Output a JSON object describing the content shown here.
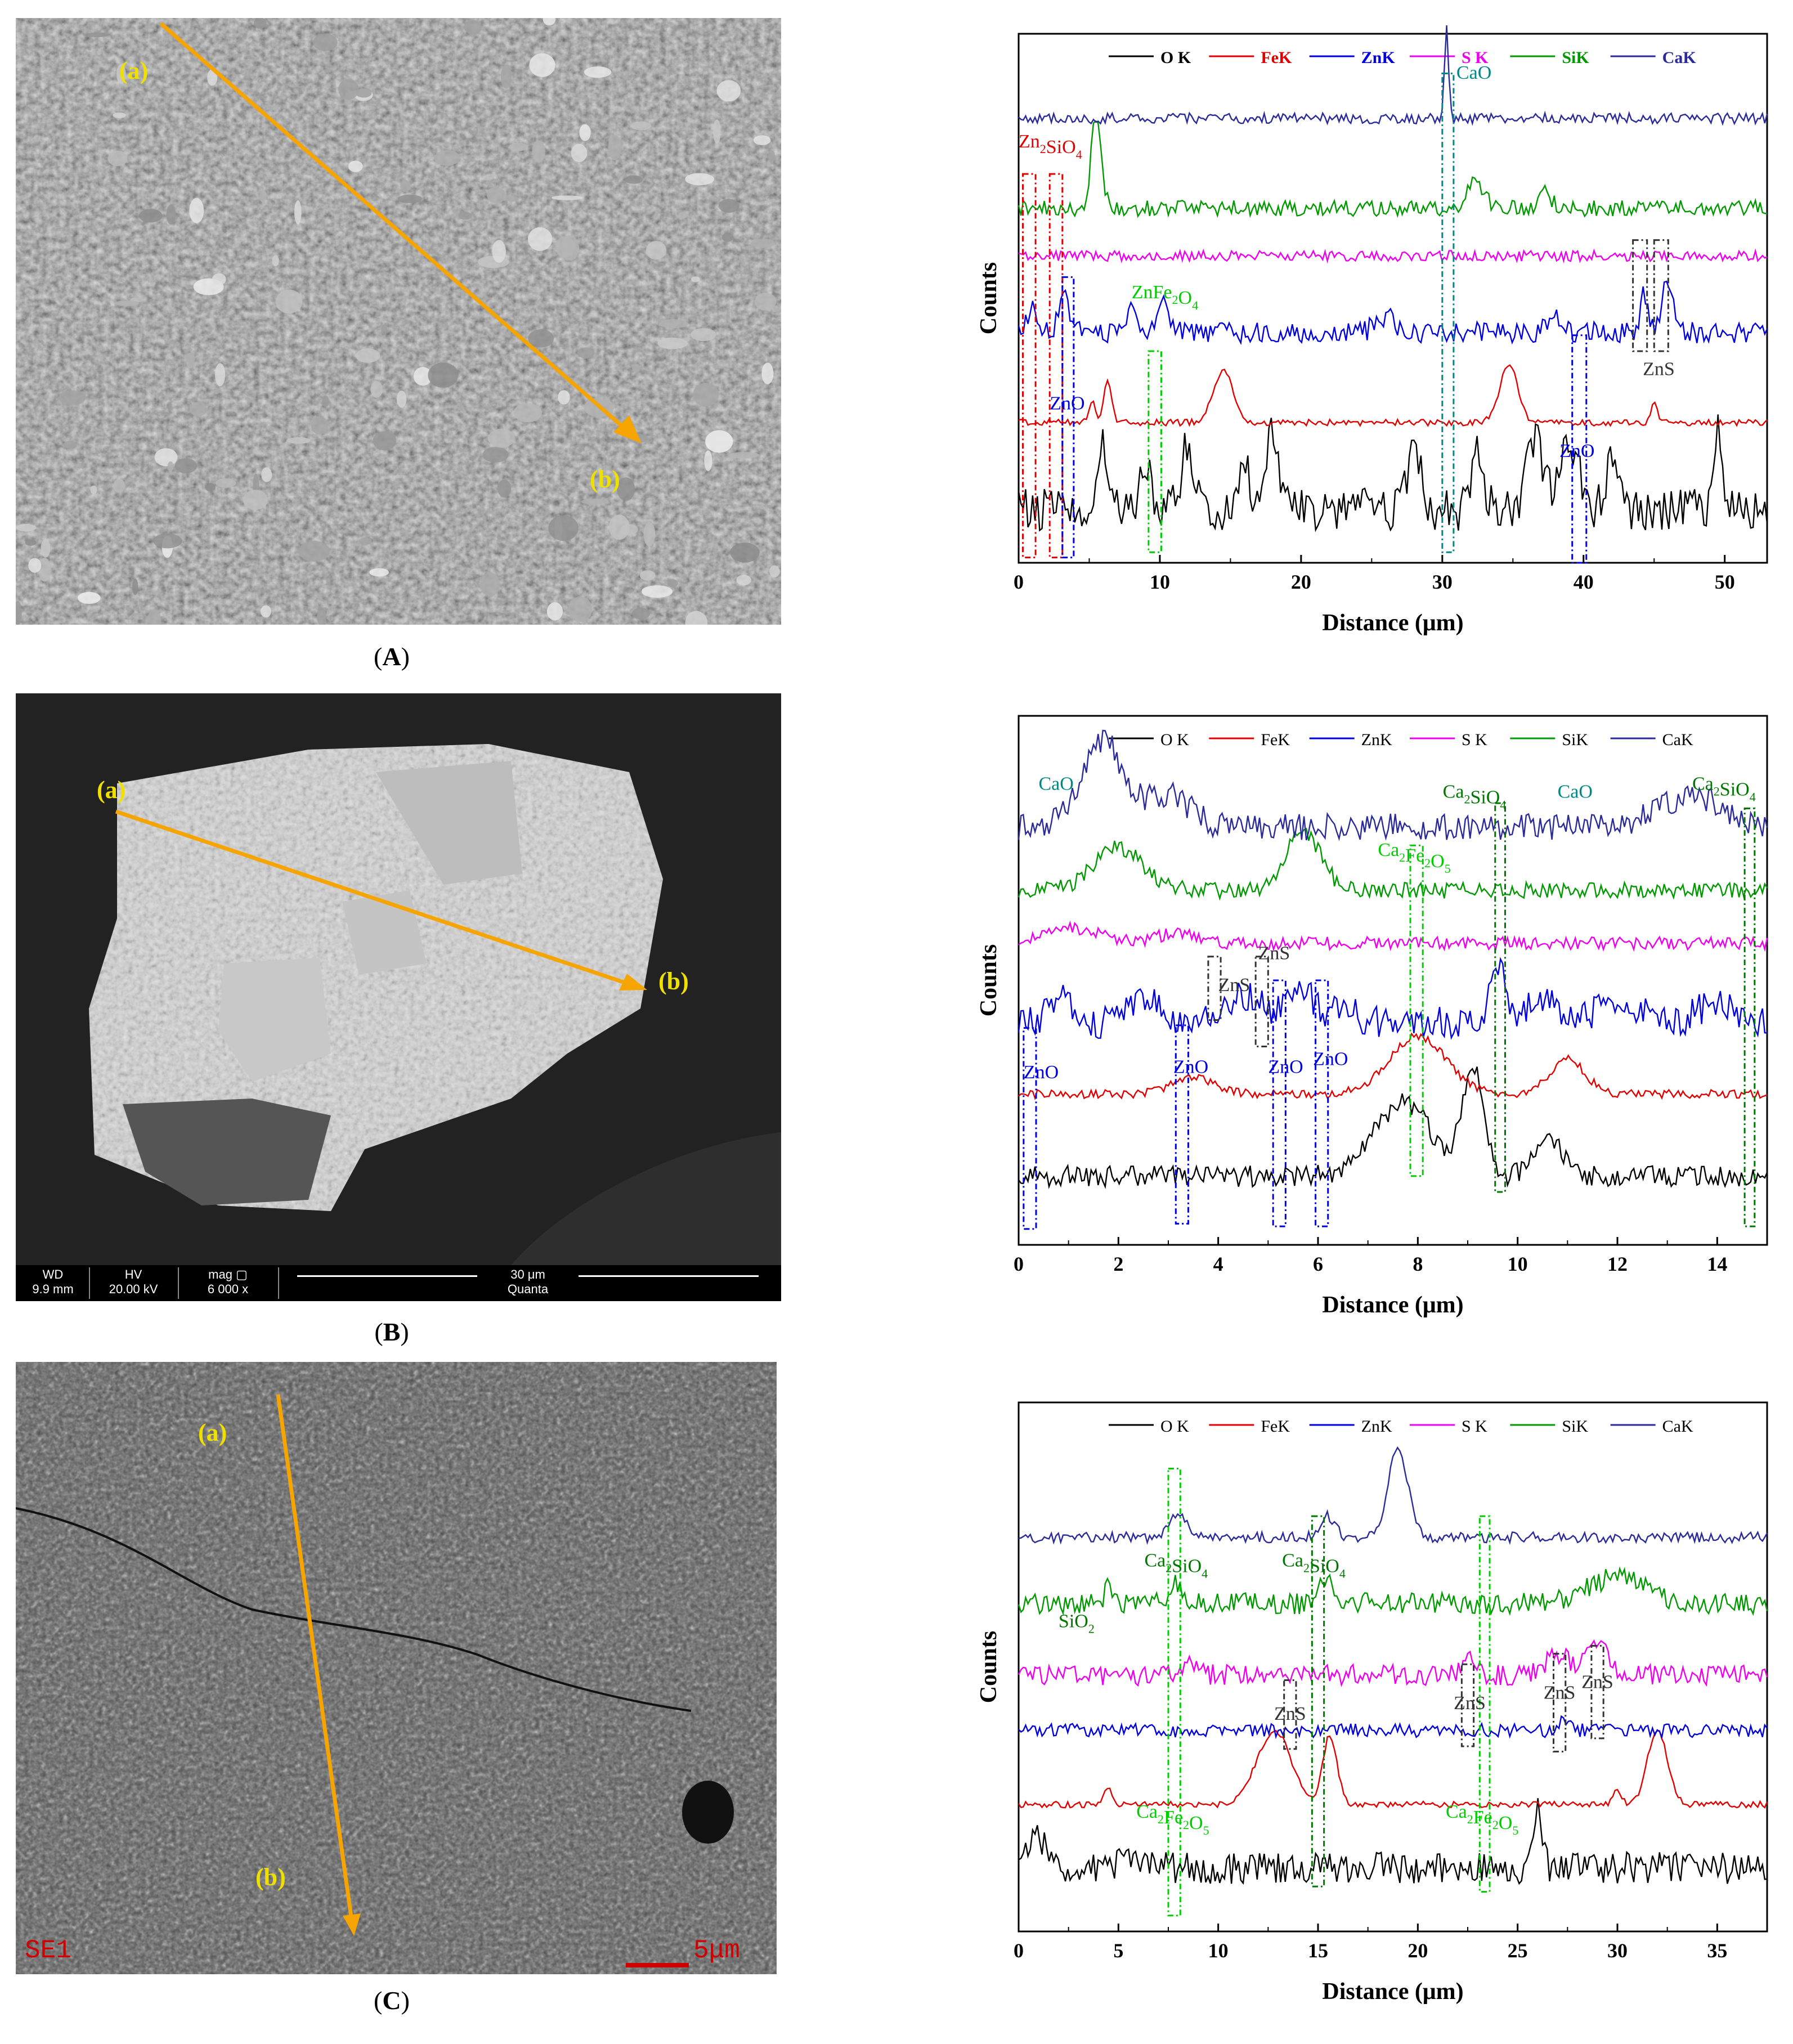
{
  "panels": [
    {
      "id": "A",
      "label_prefix": "(",
      "label_letter": "A",
      "label_suffix": ")",
      "sem": {
        "start_label": "(a)",
        "end_label": "(b)"
      }
    },
    {
      "id": "B",
      "label_prefix": "(",
      "label_letter": "B",
      "label_suffix": ")",
      "sem": {
        "start_label": "(a)",
        "end_label": "(b)",
        "databar": {
          "wd_h": "WD",
          "wd_v": "9.9 mm",
          "hv_h": "HV",
          "hv_v": "20.00 kV",
          "mag_h": "mag ▢",
          "mag_v": "6 000 x",
          "scale": "30 μm",
          "brand": "Quanta"
        }
      }
    },
    {
      "id": "C",
      "label_prefix": "(",
      "label_letter": "C",
      "label_suffix": ")",
      "sem": {
        "start_label": "(a)",
        "end_label": "(b)",
        "detector": "SE1",
        "scale": "5μm"
      }
    }
  ],
  "colors": {
    "O": "#000000",
    "Fe": "#e00000",
    "Zn": "#0000dd",
    "S": "#ee00ee",
    "Si": "#009900",
    "Ca": "#2a2a9a",
    "zn2sio4": "#e00000",
    "zno": "#0000dd",
    "cao": "#008888",
    "znfe2o4": "#00cc00",
    "zns": "#333333",
    "ca2sio4": "#007700",
    "ca2fe2o5": "#00cc00",
    "sio2": "#007700",
    "arrow": "#f5a400",
    "sem_label": "#f0e000"
  },
  "chart_data": [
    {
      "type": "line",
      "xlabel": "Distance (μm)",
      "ylabel": "Counts",
      "xlim": [
        0,
        53
      ],
      "xticks": [
        0,
        10,
        20,
        30,
        40,
        50
      ],
      "legend_placement": "top",
      "legend": [
        "O K",
        "FeK",
        "ZnK",
        "S K",
        "SiK",
        "CaK"
      ],
      "series": [
        {
          "name": "O K",
          "color": "#000000",
          "baseline": 0.9,
          "amp": 0.13,
          "noise": 0.04,
          "seed": 1,
          "peaks": [
            [
              6,
              0.12,
              0.6
            ],
            [
              9,
              0.08,
              0.5
            ],
            [
              12,
              0.12,
              0.7
            ],
            [
              16,
              0.1,
              0.5
            ],
            [
              18,
              0.16,
              0.6
            ],
            [
              24.5,
              0.07,
              0.4
            ],
            [
              28,
              0.14,
              0.6
            ],
            [
              32.5,
              0.12,
              0.6
            ],
            [
              36.5,
              0.14,
              0.8
            ],
            [
              39,
              0.12,
              1
            ],
            [
              42,
              0.1,
              0.6
            ],
            [
              49.5,
              0.15,
              0.4
            ]
          ]
        },
        {
          "name": "FeK",
          "color": "#e00000",
          "baseline": 0.735,
          "amp": 0.1,
          "noise": 0.006,
          "seed": 2,
          "peaks": [
            [
              5.2,
              0.04,
              0.3
            ],
            [
              6.3,
              0.085,
              0.4
            ],
            [
              14.5,
              0.1,
              1.0
            ],
            [
              34.7,
              0.11,
              0.9
            ],
            [
              45,
              0.04,
              0.3
            ]
          ]
        },
        {
          "name": "ZnK",
          "color": "#0000dd",
          "baseline": 0.565,
          "amp": 0.1,
          "noise": 0.02,
          "seed": 3,
          "peaks": [
            [
              1,
              0.05,
              0.5
            ],
            [
              3.2,
              0.09,
              0.5
            ],
            [
              8,
              0.05,
              0.6
            ],
            [
              10.2,
              0.06,
              0.6
            ],
            [
              26,
              0.03,
              1
            ],
            [
              38,
              0.025,
              0.8
            ],
            [
              44.3,
              0.07,
              0.4
            ],
            [
              46,
              0.1,
              0.6
            ]
          ]
        },
        {
          "name": "S K",
          "color": "#ee00ee",
          "baseline": 0.42,
          "amp": 0.05,
          "noise": 0.01,
          "seed": 4,
          "peaks": []
        },
        {
          "name": "SiK",
          "color": "#009900",
          "baseline": 0.33,
          "amp": 0.1,
          "noise": 0.015,
          "seed": 5,
          "peaks": [
            [
              5.5,
              0.18,
              0.5
            ],
            [
              32.3,
              0.06,
              0.8
            ],
            [
              37.3,
              0.03,
              0.6
            ]
          ]
        },
        {
          "name": "CaK",
          "color": "#2a2a9a",
          "baseline": 0.16,
          "amp": 0.04,
          "noise": 0.01,
          "seed": 6,
          "peaks": [
            [
              30.3,
              0.18,
              0.2
            ]
          ]
        }
      ],
      "annotations": [
        {
          "text": "Zn",
          "sub": "2",
          "text2": "SiO",
          "sub2": "4",
          "color": "#e00000",
          "x": 0,
          "y": 0.215
        },
        {
          "text": "ZnFe",
          "sub": "2",
          "text2": "O",
          "sub2": "4",
          "color": "#00cc00",
          "x": 8,
          "y": 0.5
        },
        {
          "text": "ZnO",
          "color": "#0000dd",
          "x": 2.2,
          "y": 0.71
        },
        {
          "text": "ZnO",
          "color": "#0000dd",
          "x": 38.3,
          "y": 0.8
        },
        {
          "text": "CaO",
          "color": "#008888",
          "x": 31,
          "y": 0.085
        },
        {
          "text": "ZnS",
          "color": "#333333",
          "x": 44.2,
          "y": 0.645
        }
      ],
      "boxes": [
        {
          "x0": 0.3,
          "x1": 1.2,
          "y0": 0.265,
          "y1": 0.99,
          "color": "#e00000"
        },
        {
          "x0": 2.2,
          "x1": 3.1,
          "y0": 0.265,
          "y1": 0.99,
          "color": "#e00000"
        },
        {
          "x0": 3.1,
          "x1": 3.9,
          "y0": 0.46,
          "y1": 0.99,
          "color": "#0000dd"
        },
        {
          "x0": 9.2,
          "x1": 10.1,
          "y0": 0.6,
          "y1": 0.98,
          "color": "#00cc00"
        },
        {
          "x0": 30,
          "x1": 30.8,
          "y0": 0.075,
          "y1": 0.98,
          "color": "#008888"
        },
        {
          "x0": 39.2,
          "x1": 40.2,
          "y0": 0.57,
          "y1": 1.0,
          "color": "#0000dd"
        },
        {
          "x0": 43.5,
          "x1": 44.5,
          "y0": 0.39,
          "y1": 0.6,
          "color": "#333333"
        },
        {
          "x0": 45,
          "x1": 46,
          "y0": 0.39,
          "y1": 0.6,
          "color": "#333333"
        }
      ]
    },
    {
      "type": "line",
      "xlabel": "Distance (μm)",
      "ylabel": "Counts",
      "xlim": [
        0,
        15
      ],
      "xticks": [
        0,
        2,
        4,
        6,
        8,
        10,
        12,
        14
      ],
      "legend_placement": "top",
      "legend": [
        "O K",
        "FeK",
        "ZnK",
        "S K",
        "SiK",
        "CaK"
      ],
      "series": [
        {
          "name": "O K",
          "color": "#000000",
          "baseline": 0.87,
          "amp": 0.1,
          "noise": 0.02,
          "seed": 11,
          "peaks": [
            [
              7.7,
              0.14,
              0.8
            ],
            [
              9.1,
              0.2,
              0.3
            ],
            [
              10.6,
              0.08,
              0.4
            ]
          ]
        },
        {
          "name": "FeK",
          "color": "#e00000",
          "baseline": 0.715,
          "amp": 0.1,
          "noise": 0.008,
          "seed": 12,
          "peaks": [
            [
              3.5,
              0.03,
              0.6
            ],
            [
              8,
              0.11,
              0.8
            ],
            [
              11,
              0.065,
              0.5
            ]
          ]
        },
        {
          "name": "ZnK",
          "color": "#0000dd",
          "baseline": 0.58,
          "amp": 0.1,
          "noise": 0.03,
          "seed": 13,
          "peaks": [
            [
              0.8,
              0.05,
              0.3
            ],
            [
              2.5,
              0.05,
              0.4
            ],
            [
              4.5,
              0.05,
              0.5
            ],
            [
              5.6,
              0.07,
              0.4
            ],
            [
              6.5,
              0.04,
              0.3
            ],
            [
              9.6,
              0.12,
              0.2
            ],
            [
              10.5,
              0.05,
              0.4
            ],
            [
              12,
              0.04,
              0.6
            ],
            [
              14,
              0.04,
              0.5
            ]
          ]
        },
        {
          "name": "S K",
          "color": "#ee00ee",
          "baseline": 0.43,
          "amp": 0.04,
          "noise": 0.012,
          "seed": 14,
          "peaks": [
            [
              1,
              0.03,
              0.8
            ],
            [
              3.2,
              0.02,
              0.6
            ]
          ]
        },
        {
          "name": "SiK",
          "color": "#009900",
          "baseline": 0.33,
          "amp": 0.1,
          "noise": 0.015,
          "seed": 15,
          "peaks": [
            [
              2,
              0.08,
              0.7
            ],
            [
              5.7,
              0.11,
              0.5
            ]
          ]
        },
        {
          "name": "CaK",
          "color": "#2a2a9a",
          "baseline": 0.21,
          "amp": 0.1,
          "noise": 0.025,
          "seed": 16,
          "peaks": [
            [
              1.7,
              0.16,
              0.6
            ],
            [
              3,
              0.06,
              0.6
            ],
            [
              13.5,
              0.06,
              0.9
            ]
          ]
        }
      ],
      "annotations": [
        {
          "text": "CaO",
          "color": "#008888",
          "x": 0.4,
          "y": 0.14
        },
        {
          "text": "Ca",
          "sub": "2",
          "text2": "SiO",
          "sub2": "4",
          "color": "#007700",
          "x": 8.5,
          "y": 0.155
        },
        {
          "text": "CaO",
          "color": "#008888",
          "x": 10.8,
          "y": 0.155
        },
        {
          "text": "Ca",
          "sub": "2",
          "text2": "SiO",
          "sub2": "4",
          "color": "#007700",
          "x": 13.5,
          "y": 0.14
        },
        {
          "text": "Ca",
          "sub": "2",
          "text2": "Fe",
          "sub2": "2",
          "text3": "O",
          "sub3": "5",
          "color": "#00cc00",
          "x": 7.2,
          "y": 0.265
        },
        {
          "text": "ZnS",
          "color": "#333333",
          "x": 4.0,
          "y": 0.52
        },
        {
          "text": "ZnS",
          "color": "#333333",
          "x": 4.8,
          "y": 0.46
        },
        {
          "text": "ZnO",
          "color": "#0000dd",
          "x": 0.1,
          "y": 0.685
        },
        {
          "text": "ZnO",
          "color": "#0000dd",
          "x": 3.1,
          "y": 0.675
        },
        {
          "text": "ZnO",
          "color": "#0000dd",
          "x": 5.0,
          "y": 0.675
        },
        {
          "text": "ZnO",
          "color": "#0000dd",
          "x": 5.9,
          "y": 0.66
        }
      ],
      "boxes": [
        {
          "x0": 0.1,
          "x1": 0.35,
          "y0": 0.59,
          "y1": 0.97,
          "color": "#0000dd"
        },
        {
          "x0": 3.15,
          "x1": 3.4,
          "y0": 0.585,
          "y1": 0.96,
          "color": "#0000dd"
        },
        {
          "x0": 3.8,
          "x1": 4.05,
          "y0": 0.455,
          "y1": 0.575,
          "color": "#333333"
        },
        {
          "x0": 4.75,
          "x1": 5.0,
          "y0": 0.455,
          "y1": 0.625,
          "color": "#333333"
        },
        {
          "x0": 5.1,
          "x1": 5.35,
          "y0": 0.5,
          "y1": 0.965,
          "color": "#0000dd"
        },
        {
          "x0": 5.95,
          "x1": 6.2,
          "y0": 0.5,
          "y1": 0.965,
          "color": "#0000dd"
        },
        {
          "x0": 7.85,
          "x1": 8.1,
          "y0": 0.245,
          "y1": 0.87,
          "color": "#00cc00"
        },
        {
          "x0": 9.55,
          "x1": 9.75,
          "y0": 0.165,
          "y1": 0.9,
          "color": "#007700"
        },
        {
          "x0": 14.55,
          "x1": 14.75,
          "y0": 0.175,
          "y1": 0.965,
          "color": "#007700"
        }
      ]
    },
    {
      "type": "line",
      "xlabel": "Distance (μm)",
      "ylabel": "Counts",
      "xlim": [
        0,
        37.5
      ],
      "xticks": [
        0,
        5,
        10,
        15,
        20,
        25,
        30,
        35
      ],
      "legend_placement": "top",
      "legend": [
        "O K",
        "FeK",
        "ZnK",
        "S K",
        "SiK",
        "CaK"
      ],
      "series": [
        {
          "name": "O K",
          "color": "#000000",
          "baseline": 0.88,
          "amp": 0.1,
          "noise": 0.03,
          "seed": 21,
          "peaks": [
            [
              1,
              0.06,
              0.6
            ],
            [
              5.5,
              0.03,
              0.5
            ],
            [
              26,
              0.11,
              0.3
            ]
          ]
        },
        {
          "name": "FeK",
          "color": "#e00000",
          "baseline": 0.76,
          "amp": 0.1,
          "noise": 0.006,
          "seed": 22,
          "peaks": [
            [
              4.5,
              0.03,
              0.3
            ],
            [
              12.8,
              0.14,
              1.2
            ],
            [
              15.6,
              0.13,
              0.5
            ],
            [
              30,
              0.03,
              0.3
            ],
            [
              32,
              0.14,
              0.7
            ]
          ]
        },
        {
          "name": "ZnK",
          "color": "#0000dd",
          "baseline": 0.62,
          "amp": 0.04,
          "noise": 0.013,
          "seed": 23,
          "peaks": [
            [
              27.3,
              0.02,
              0.4
            ]
          ]
        },
        {
          "name": "S K",
          "color": "#ee00ee",
          "baseline": 0.515,
          "amp": 0.05,
          "noise": 0.02,
          "seed": 24,
          "peaks": [
            [
              8.5,
              0.03,
              0.4
            ],
            [
              22.5,
              0.03,
              0.4
            ],
            [
              27,
              0.04,
              0.8
            ],
            [
              29,
              0.05,
              0.9
            ]
          ]
        },
        {
          "name": "SiK",
          "color": "#009900",
          "baseline": 0.38,
          "amp": 0.08,
          "noise": 0.02,
          "seed": 25,
          "peaks": [
            [
              4.5,
              0.05,
              0.2
            ],
            [
              8,
              0.04,
              0.4
            ],
            [
              15.5,
              0.05,
              0.5
            ],
            [
              30,
              0.05,
              2
            ]
          ]
        },
        {
          "name": "CaK",
          "color": "#2a2a9a",
          "baseline": 0.255,
          "amp": 0.04,
          "noise": 0.01,
          "seed": 26,
          "peaks": [
            [
              8,
              0.04,
              0.6
            ],
            [
              15.5,
              0.04,
              0.5
            ],
            [
              19,
              0.17,
              0.7
            ]
          ]
        }
      ],
      "annotations": [
        {
          "text": "Ca",
          "sub": "2",
          "text2": "SiO",
          "sub2": "4",
          "color": "#007700",
          "x": 6.3,
          "y": 0.31
        },
        {
          "text": "Ca",
          "sub": "2",
          "text2": "SiO",
          "sub2": "4",
          "color": "#007700",
          "x": 13.2,
          "y": 0.31
        },
        {
          "text": "SiO",
          "sub": "2",
          "color": "#007700",
          "x": 2.0,
          "y": 0.425
        },
        {
          "text": "ZnS",
          "color": "#333333",
          "x": 12.8,
          "y": 0.6
        },
        {
          "text": "ZnS",
          "color": "#333333",
          "x": 21.8,
          "y": 0.58
        },
        {
          "text": "ZnS",
          "color": "#333333",
          "x": 26.3,
          "y": 0.56
        },
        {
          "text": "ZnS",
          "color": "#333333",
          "x": 28.2,
          "y": 0.54
        },
        {
          "text": "Ca",
          "sub": "2",
          "text2": "Fe",
          "sub2": "2",
          "text3": "O",
          "sub3": "5",
          "color": "#00cc00",
          "x": 5.9,
          "y": 0.785
        },
        {
          "text": "Ca",
          "sub": "2",
          "text2": "Fe",
          "sub2": "2",
          "text3": "O",
          "sub3": "5",
          "color": "#00cc00",
          "x": 21.4,
          "y": 0.785
        }
      ],
      "boxes": [
        {
          "x0": 7.5,
          "x1": 8.1,
          "y0": 0.125,
          "y1": 0.97,
          "color": "#00cc00"
        },
        {
          "x0": 14.7,
          "x1": 15.3,
          "y0": 0.215,
          "y1": 0.915,
          "color": "#007700"
        },
        {
          "x0": 13.3,
          "x1": 13.9,
          "y0": 0.525,
          "y1": 0.655,
          "color": "#333333"
        },
        {
          "x0": 22.2,
          "x1": 22.8,
          "y0": 0.495,
          "y1": 0.65,
          "color": "#333333"
        },
        {
          "x0": 23.1,
          "x1": 23.6,
          "y0": 0.215,
          "y1": 0.925,
          "color": "#00cc00"
        },
        {
          "x0": 26.8,
          "x1": 27.4,
          "y0": 0.475,
          "y1": 0.66,
          "color": "#333333"
        },
        {
          "x0": 28.7,
          "x1": 29.3,
          "y0": 0.46,
          "y1": 0.635,
          "color": "#333333"
        }
      ]
    }
  ]
}
